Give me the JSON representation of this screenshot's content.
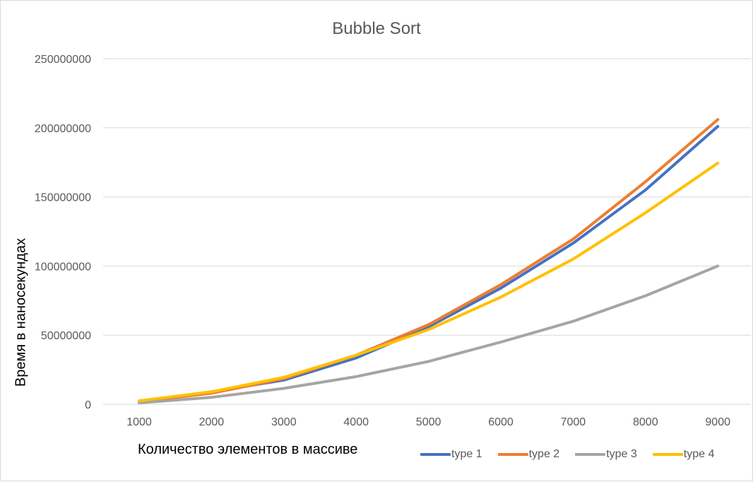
{
  "chart_data": {
    "type": "line",
    "title": "Bubble Sort",
    "xlabel": "Количество элементов в массиве",
    "ylabel": "Время в наносекундах",
    "categories": [
      "1000",
      "2000",
      "3000",
      "4000",
      "5000",
      "6000",
      "7000",
      "8000",
      "9000"
    ],
    "yticks": [
      "0",
      "50000000",
      "100000000",
      "150000000",
      "200000000",
      "250000000"
    ],
    "ylim": [
      0,
      250000000
    ],
    "grid": true,
    "legend_position": "bottom-right",
    "series": [
      {
        "name": "type 1",
        "color": "#4472c4",
        "values": [
          2000000,
          9000000,
          17500000,
          33500000,
          56000000,
          84000000,
          116500000,
          155000000,
          201000000
        ]
      },
      {
        "name": "type 2",
        "color": "#ed7d31",
        "values": [
          2000000,
          8000000,
          18500000,
          35500000,
          57500000,
          86500000,
          119500000,
          161000000,
          206000000
        ]
      },
      {
        "name": "type 3",
        "color": "#a5a5a5",
        "values": [
          1000000,
          5000000,
          11500000,
          20000000,
          31000000,
          45000000,
          60000000,
          78500000,
          100000000
        ]
      },
      {
        "name": "type 4",
        "color": "#ffc000",
        "values": [
          2500000,
          9000000,
          19500000,
          35500000,
          54000000,
          77500000,
          105000000,
          138500000,
          174500000
        ]
      }
    ]
  }
}
